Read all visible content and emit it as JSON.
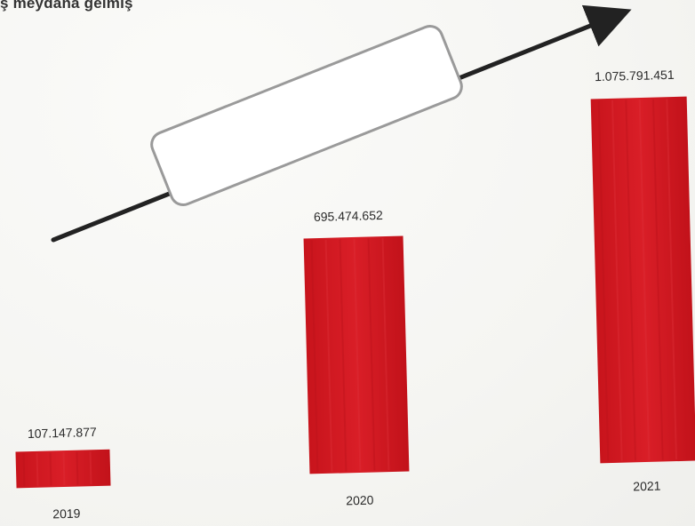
{
  "header": {
    "text": "ş meydana gelmiş"
  },
  "colors": {
    "bar": "#d41a22",
    "bar_dark": "#b5121a",
    "arrow": "#222222",
    "background": "#f7f7f5"
  },
  "chart_data": {
    "type": "bar",
    "categories": [
      "2019",
      "2020",
      "2021"
    ],
    "values": [
      107147877,
      695474652,
      1075791451
    ],
    "value_labels": [
      "107.147.877",
      "695.474.652",
      "1.075.791.451"
    ],
    "title": "",
    "xlabel": "",
    "ylabel": "",
    "ylim": [
      0,
      1075791451
    ],
    "grid": false,
    "legend": "none",
    "annotation": "upward trend arrow with empty rounded box"
  }
}
